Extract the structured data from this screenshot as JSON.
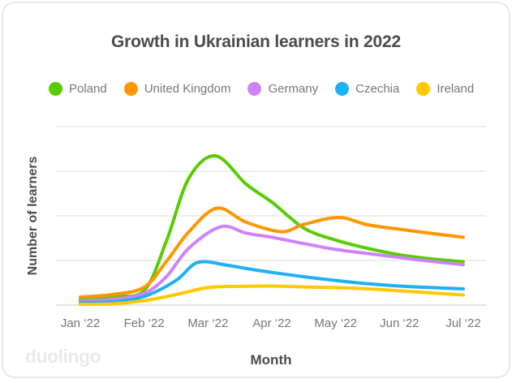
{
  "card": {
    "title": "Growth in Ukrainian learners in 2022",
    "watermark": "duolingo",
    "background": "#ffffff",
    "border_color": "#e8e8e8"
  },
  "colors": {
    "title_text": "#4b4b4b",
    "axis_text": "#777777",
    "gridline": "#e7e7e7",
    "baseline": "#dcdcdc",
    "watermark": "#e9e9e9"
  },
  "chart_data": {
    "type": "line",
    "title": "Growth in Ukrainian learners in 2022",
    "xlabel": "Month",
    "ylabel": "Number of learners",
    "x_tick_labels": [
      "Jan ‘22",
      "Feb ‘22",
      "Mar ‘22",
      "Apr ‘22",
      "May ‘22",
      "Jun ‘22",
      "Jul ‘22"
    ],
    "x_unit": "month index (0 = Jan ‘22, 6 = Jul ‘22)",
    "y_axis_numeric_labels_shown": false,
    "units": "relative number of learners (y-axis unlabeled); 100 = top gridline",
    "ylim": [
      0,
      110
    ],
    "grid": "horizontal",
    "gridline_count": 5,
    "legend_position": "top",
    "series": [
      {
        "name": "Poland",
        "color": "#58CC02",
        "x": [
          0,
          0.5,
          1,
          1.35,
          1.7,
          2.12,
          2.6,
          3,
          3.5,
          4,
          4.5,
          5,
          5.5,
          6
        ],
        "values": [
          3.2,
          5.0,
          8.2,
          36,
          71,
          83.6,
          67.7,
          57.7,
          43.2,
          36.4,
          31.8,
          28.2,
          25.9,
          24.3
        ]
      },
      {
        "name": "United Kingdom",
        "color": "#FF9600",
        "x": [
          0,
          0.5,
          1,
          1.35,
          1.7,
          2.14,
          2.6,
          3.15,
          3.5,
          4.05,
          4.5,
          5,
          5.5,
          6
        ],
        "values": [
          4.5,
          5.9,
          10.0,
          24.5,
          41.0,
          54.3,
          46.4,
          41.1,
          45.2,
          49.1,
          45.0,
          42.5,
          40.2,
          38.0
        ]
      },
      {
        "name": "Germany",
        "color": "#CE82FF",
        "x": [
          0,
          0.5,
          1,
          1.35,
          1.7,
          2.2,
          2.6,
          3,
          3.5,
          4,
          4.5,
          5,
          5.5,
          6
        ],
        "values": [
          2.3,
          3.2,
          6.6,
          16,
          31.9,
          43.9,
          40.3,
          38.0,
          34.5,
          31.2,
          28.9,
          26.7,
          24.5,
          22.7
        ]
      },
      {
        "name": "Czechia",
        "color": "#1CB0F6",
        "x": [
          0,
          0.5,
          1,
          1.5,
          1.84,
          2.3,
          2.6,
          3,
          3.5,
          4,
          4.5,
          5,
          5.5,
          6
        ],
        "values": [
          1.4,
          1.8,
          4.8,
          13.8,
          23.9,
          22.3,
          20.5,
          18.3,
          15.9,
          13.8,
          12.0,
          10.7,
          9.8,
          9.1
        ]
      },
      {
        "name": "Ireland",
        "color": "#FFC800",
        "x": [
          0,
          0.5,
          1,
          1.5,
          2,
          2.5,
          3,
          3.5,
          4,
          4.5,
          5,
          5.5,
          6
        ],
        "values": [
          0.5,
          0.7,
          2.5,
          5.9,
          9.8,
          10.5,
          10.7,
          10.2,
          9.8,
          9.1,
          8.0,
          6.8,
          5.7
        ]
      }
    ]
  }
}
